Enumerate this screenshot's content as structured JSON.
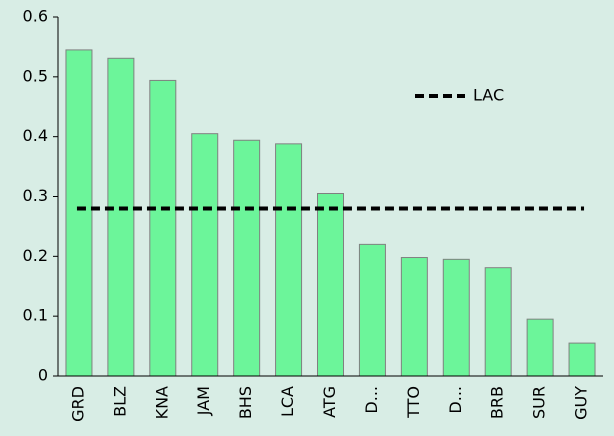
{
  "chart_data": {
    "type": "bar",
    "categories": [
      "GRD",
      "BLZ",
      "KNA",
      "JAM",
      "BHS",
      "LCA",
      "ATG",
      "D...",
      "TTO",
      "D...",
      "BRB",
      "SUR",
      "GUY"
    ],
    "values": [
      0.545,
      0.531,
      0.494,
      0.405,
      0.394,
      0.388,
      0.305,
      0.22,
      0.198,
      0.195,
      0.181,
      0.095,
      0.055
    ],
    "color": "#6cf59a",
    "reference": {
      "name": "LAC",
      "value": 0.28,
      "color": "#000000"
    },
    "ylim": [
      0,
      0.6
    ],
    "yticks": [
      0,
      0.1,
      0.2,
      0.3,
      0.4,
      0.5,
      0.6
    ],
    "grid": false,
    "legend": "upper right"
  }
}
